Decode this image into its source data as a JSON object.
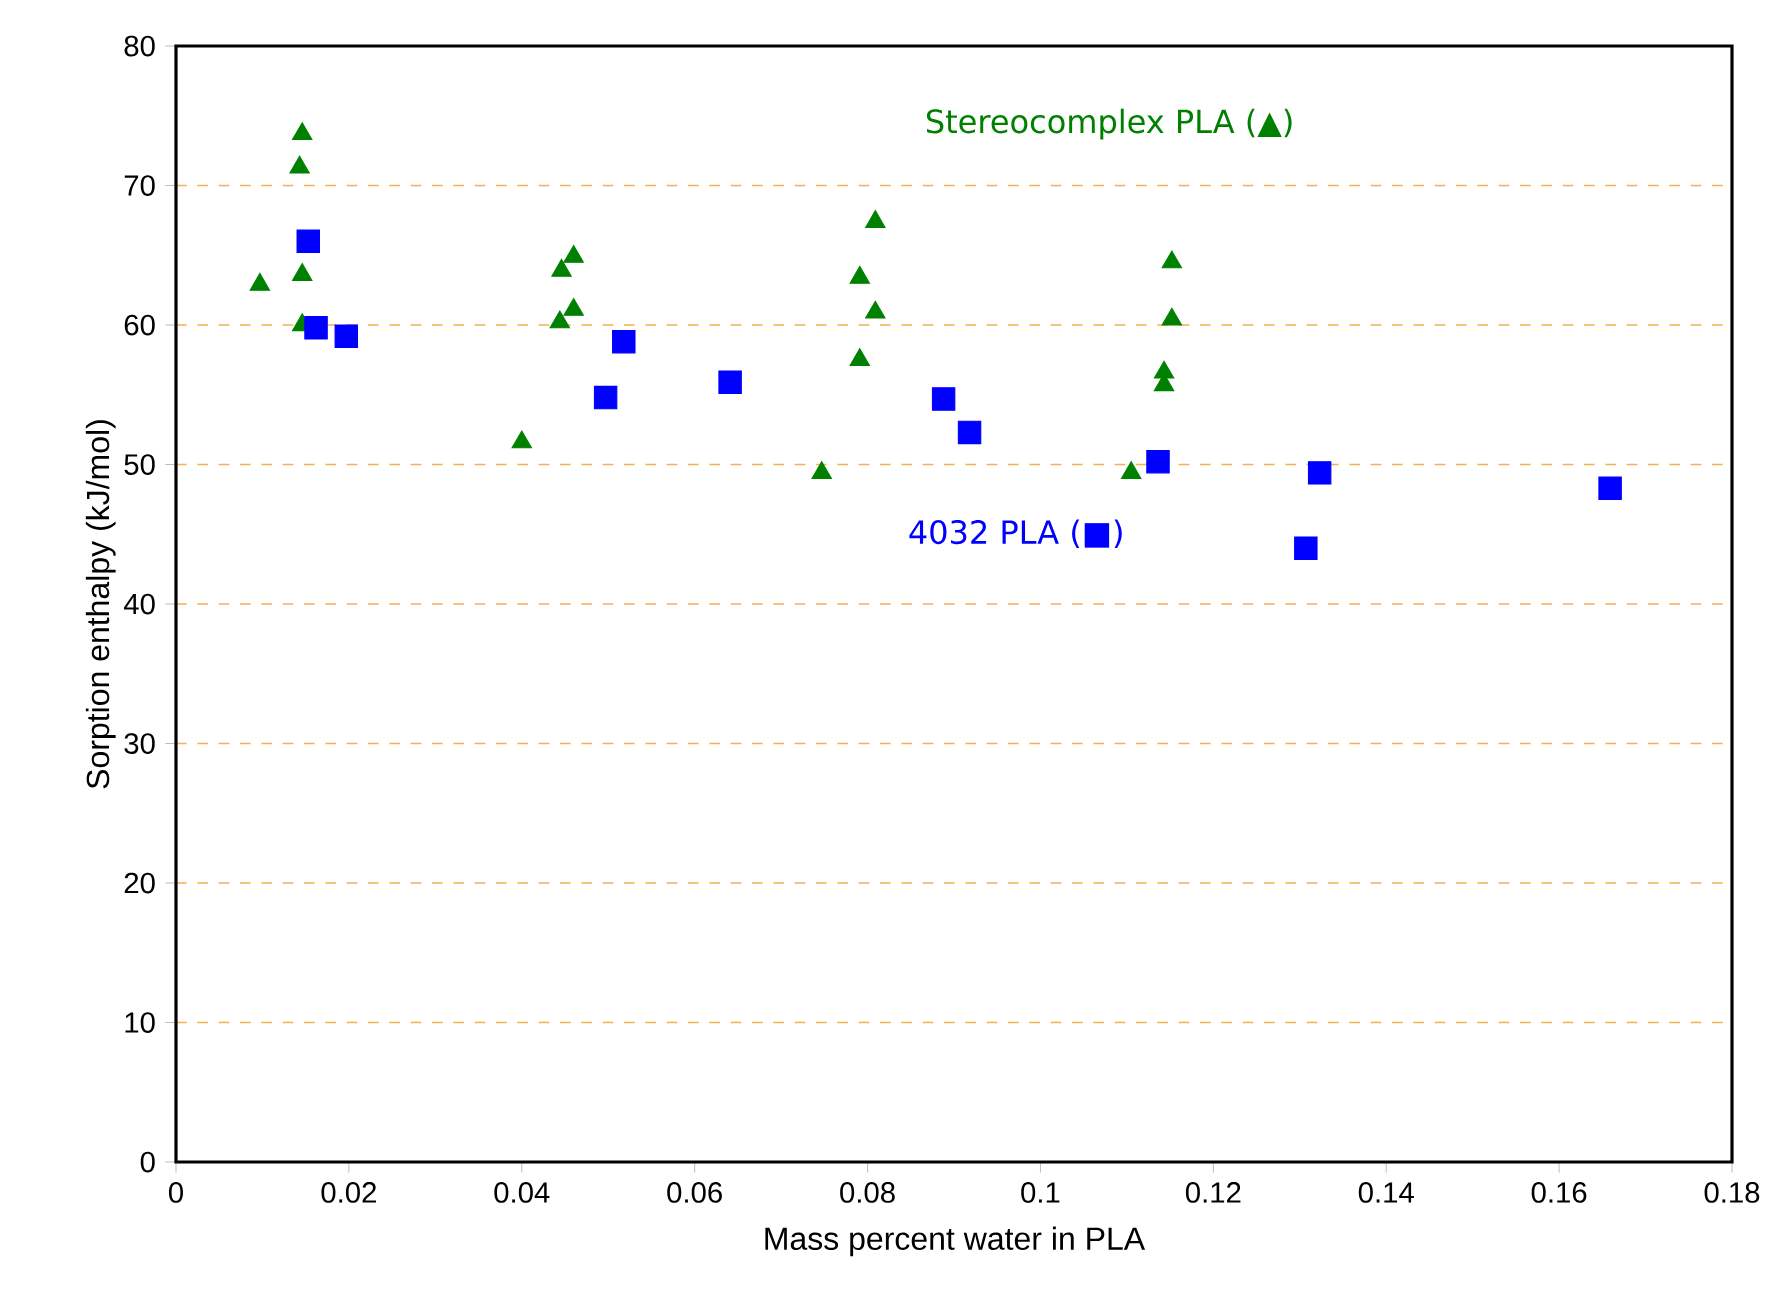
{
  "chart_data": {
    "type": "scatter",
    "xlabel": "Mass percent  water in PLA",
    "ylabel": "Sorption enthalpy (kJ/mol)",
    "xlim": [
      0,
      0.18
    ],
    "ylim": [
      0,
      80
    ],
    "xticks": [
      0,
      0.02,
      0.04,
      0.06,
      0.08,
      0.1,
      0.12,
      0.14,
      0.16,
      0.18
    ],
    "yticks": [
      0,
      10,
      20,
      30,
      40,
      50,
      60,
      70,
      80
    ],
    "grid": "y",
    "legend": false,
    "series": [
      {
        "name": "Stereocomplex PLA (▲)",
        "color": "#008000",
        "marker": "triangle",
        "x": [
          0.0097,
          0.0146,
          0.0143,
          0.0146,
          0.0146,
          0.04,
          0.0446,
          0.046,
          0.0444,
          0.046,
          0.0747,
          0.0809,
          0.0791,
          0.0809,
          0.0791,
          0.1105,
          0.1152,
          0.1152,
          0.1143,
          0.1143
        ],
        "values": [
          62.9,
          73.7,
          71.3,
          63.6,
          60.0,
          51.6,
          63.9,
          64.9,
          60.2,
          61.1,
          49.4,
          67.4,
          63.4,
          60.9,
          57.5,
          49.4,
          64.5,
          60.4,
          56.6,
          55.7
        ]
      },
      {
        "name": "4032 PLA (■)",
        "color": "#0000ff",
        "marker": "square",
        "x": [
          0.0153,
          0.0162,
          0.0197,
          0.0497,
          0.0518,
          0.0641,
          0.0888,
          0.0918,
          0.1136,
          0.1323,
          0.1307,
          0.1659
        ],
        "values": [
          66.0,
          59.8,
          59.2,
          54.8,
          58.8,
          55.9,
          54.7,
          52.3,
          50.2,
          49.4,
          44.0,
          48.3
        ]
      }
    ]
  }
}
